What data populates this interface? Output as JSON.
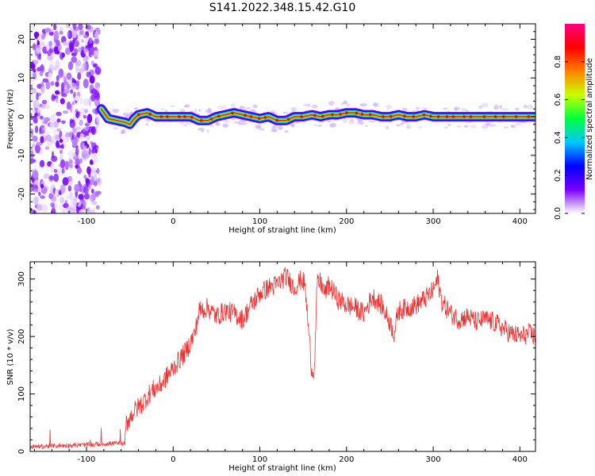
{
  "title": "S141.2022.348.15.42.G10",
  "chart_data": [
    {
      "type": "heatmap",
      "xlabel": "Height of straight line (km)",
      "ylabel": "Frequency (Hz)",
      "xlim": [
        -165,
        418
      ],
      "ylim": [
        -25,
        24
      ],
      "xticks": [
        -100,
        0,
        100,
        200,
        300,
        400
      ],
      "yticks": [
        -20,
        -10,
        0,
        10,
        20
      ],
      "colorbar": {
        "label": "Normalized spectral amplitude",
        "range": [
          0.0,
          1.0
        ],
        "ticks": [
          "0.0",
          "0.2",
          "0.4",
          "0.6",
          "0.8"
        ],
        "tick_values": [
          0.0,
          0.2,
          0.4,
          0.6,
          0.8
        ],
        "colormap": [
          "#ffffff",
          "#7a00ff",
          "#0000ff",
          "#00c8ff",
          "#00ff40",
          "#c8ff00",
          "#ff8000",
          "#ff0000",
          "#ff0080"
        ]
      },
      "noise_region_x": [
        -165,
        -85
      ],
      "ridge": {
        "x": [
          -83,
          -75,
          -65,
          -55,
          -50,
          -45,
          -40,
          -30,
          -20,
          0,
          20,
          30,
          40,
          50,
          60,
          70,
          80,
          90,
          100,
          110,
          120,
          130,
          140,
          150,
          160,
          170,
          180,
          190,
          200,
          210,
          220,
          230,
          240,
          250,
          260,
          270,
          280,
          290,
          300,
          320,
          340,
          360,
          380,
          400,
          418
        ],
        "f": [
          2,
          -0.5,
          -1,
          -1.5,
          -2,
          -0.5,
          0.5,
          1,
          0,
          0,
          0,
          -1,
          -1,
          0,
          0.5,
          1,
          0.5,
          0,
          -0.5,
          0,
          -1,
          -1,
          0,
          0,
          0.5,
          0,
          0.5,
          0.5,
          1,
          1,
          0.5,
          0.5,
          0,
          0,
          0.5,
          0,
          0,
          0.5,
          0,
          0,
          0,
          0,
          0,
          0,
          0
        ]
      }
    },
    {
      "type": "line",
      "xlabel": "Height of straight line (km)",
      "ylabel": "SNR (10 * v/v)",
      "xlim": [
        -165,
        418
      ],
      "ylim": [
        0,
        330
      ],
      "xticks": [
        -100,
        0,
        100,
        200,
        300,
        400
      ],
      "yticks": [
        0,
        100,
        200,
        300
      ],
      "color": "#ee3333",
      "series": [
        {
          "x": [
            -165,
            -150,
            -130,
            -110,
            -90,
            -70,
            -56,
            -54,
            -45,
            -35,
            -25,
            -15,
            -5,
            5,
            15,
            25,
            30,
            40,
            50,
            60,
            70,
            80,
            90,
            100,
            110,
            120,
            130,
            140,
            148,
            152,
            156,
            160,
            163,
            166,
            170,
            175,
            180,
            190,
            200,
            210,
            220,
            230,
            240,
            250,
            255,
            260,
            270,
            280,
            290,
            300,
            305,
            310,
            320,
            330,
            340,
            350,
            360,
            370,
            380,
            390,
            400,
            410,
            418
          ],
          "y": [
            8,
            9,
            10,
            11,
            12,
            14,
            14,
            50,
            70,
            85,
            105,
            115,
            135,
            155,
            175,
            205,
            245,
            250,
            235,
            245,
            240,
            230,
            255,
            275,
            285,
            290,
            305,
            285,
            300,
            290,
            215,
            140,
            145,
            290,
            295,
            275,
            290,
            265,
            255,
            250,
            240,
            270,
            255,
            225,
            205,
            245,
            250,
            255,
            265,
            280,
            300,
            260,
            240,
            230,
            235,
            225,
            230,
            225,
            215,
            205,
            200,
            205,
            200
          ]
        }
      ],
      "noise_amplitude": 18
    }
  ]
}
